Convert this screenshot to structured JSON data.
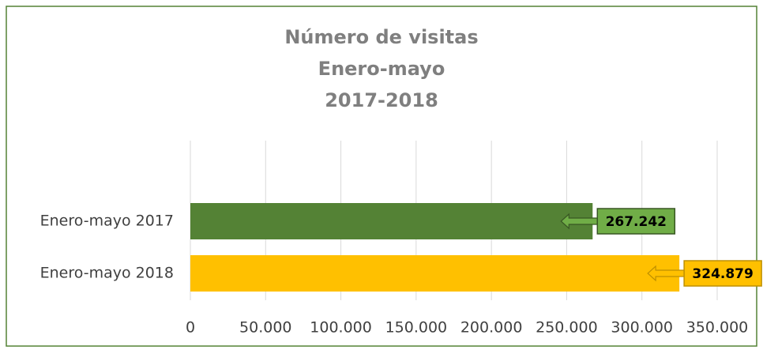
{
  "chart_data": {
    "type": "bar",
    "orientation": "horizontal",
    "title": [
      "Número de visitas",
      "Enero-mayo",
      "2017-2018"
    ],
    "categories": [
      "Enero-mayo 2017",
      "Enero-mayo 2018"
    ],
    "values": [
      267242,
      324879
    ],
    "value_labels": [
      "267.242",
      "324.879"
    ],
    "colors": [
      "#548235",
      "#ffc000"
    ],
    "xlim": [
      0,
      350000
    ],
    "xticks": [
      0,
      {
        "value": 50000,
        "label": "50.000"
      },
      {
        "value": 100000,
        "label": "100.000"
      },
      {
        "value": 150000,
        "label": "150.000"
      },
      {
        "value": 200000,
        "label": "200.000"
      },
      {
        "value": 250000,
        "label": "250.000"
      },
      {
        "value": 300000,
        "label": "300.000"
      },
      {
        "value": 350000,
        "label": "350.000"
      }
    ],
    "grid": true
  }
}
